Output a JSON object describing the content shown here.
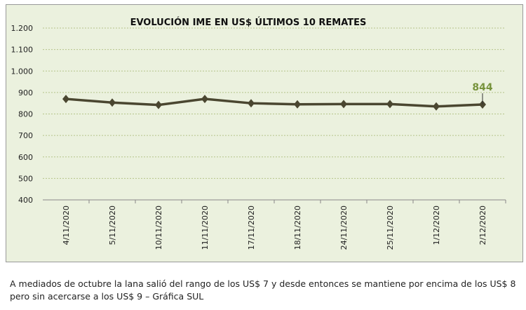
{
  "chart_data": {
    "type": "line",
    "title": "EVOLUCIÓN IME EN US$ ÚLTIMOS 10 REMATES",
    "categories": [
      "4/11/2020",
      "5/11/2020",
      "10/11/2020",
      "11/11/2020",
      "17/11/2020",
      "18/11/2020",
      "24/11/2020",
      "25/11/2020",
      "1/12/2020",
      "2/12/2020"
    ],
    "values": [
      870,
      853,
      842,
      870,
      850,
      845,
      846,
      846,
      835,
      844
    ],
    "ylim": [
      400,
      1200
    ],
    "yticks": [
      "400",
      "500",
      "600",
      "700",
      "800",
      "900",
      "1.000",
      "1.100",
      "1.200"
    ],
    "data_label": "844",
    "grid": true,
    "line_color": "#4a4630",
    "label_color": "#77933c"
  },
  "caption": "A mediados de octubre la lana salió del rango de los US$ 7 y desde entonces se mantiene por encima de los US$ 8 pero sin acercarse a los US$ 9 – Gráfica SUL"
}
